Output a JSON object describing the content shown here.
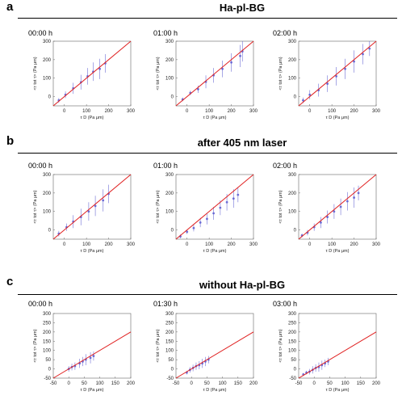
{
  "panels": [
    {
      "letter": "a",
      "title": "Ha-pl-BG",
      "times": [
        "00:00 h",
        "01:00 h",
        "02:00 h"
      ]
    },
    {
      "letter": "b",
      "title": "after 405 nm laser",
      "times": [
        "00:00 h",
        "01:00 h",
        "02:00 h"
      ]
    },
    {
      "letter": "c",
      "title": "without Ha-pl-BG",
      "times": [
        "00:00 h",
        "01:30 h",
        "03:00 h"
      ]
    }
  ],
  "axis_text": {
    "xlabel": "τ D (Pa μm)",
    "ylabel": "<τ tot τ> (Pa μm)"
  },
  "colors": {
    "identity_line": "#e02020",
    "data": "#5a5ad0"
  },
  "chart_data": [
    {
      "type": "scatter",
      "panel": "a",
      "subplot": 1,
      "title": "00:00 h",
      "xlim": [
        -50,
        300
      ],
      "ylim": [
        -50,
        300
      ],
      "xticks": [
        "0",
        "100",
        "200",
        "300"
      ],
      "yticks": [
        "0",
        "100",
        "200",
        "300"
      ],
      "reference_line": "y = x",
      "x": [
        -25,
        5,
        40,
        75,
        105,
        130,
        160,
        185
      ],
      "y": [
        -20,
        10,
        45,
        78,
        110,
        135,
        150,
        180
      ],
      "yerr": [
        12,
        18,
        30,
        40,
        45,
        50,
        55,
        50
      ]
    },
    {
      "type": "scatter",
      "panel": "a",
      "subplot": 2,
      "title": "01:00 h",
      "xlim": [
        -50,
        300
      ],
      "ylim": [
        -50,
        300
      ],
      "xticks": [
        "0",
        "100",
        "200",
        "300"
      ],
      "yticks": [
        "0",
        "100",
        "200",
        "300"
      ],
      "reference_line": "y = x",
      "x": [
        -20,
        15,
        50,
        85,
        120,
        160,
        200,
        240,
        250
      ],
      "y": [
        -15,
        20,
        40,
        80,
        115,
        150,
        185,
        220,
        245
      ],
      "yerr": [
        10,
        12,
        20,
        35,
        40,
        45,
        50,
        60,
        55
      ]
    },
    {
      "type": "scatter",
      "panel": "a",
      "subplot": 3,
      "title": "02:00 h",
      "xlim": [
        -50,
        300
      ],
      "ylim": [
        -50,
        300
      ],
      "xticks": [
        "0",
        "100",
        "200",
        "300"
      ],
      "yticks": [
        "0",
        "100",
        "200",
        "300"
      ],
      "reference_line": "y = x",
      "x": [
        -30,
        0,
        40,
        80,
        120,
        160,
        200,
        240,
        270
      ],
      "y": [
        -20,
        10,
        35,
        70,
        110,
        150,
        190,
        230,
        260
      ],
      "yerr": [
        15,
        25,
        35,
        45,
        50,
        55,
        60,
        55,
        40
      ]
    },
    {
      "type": "scatter",
      "panel": "b",
      "subplot": 1,
      "title": "00:00 h",
      "xlim": [
        -50,
        300
      ],
      "ylim": [
        -50,
        300
      ],
      "xticks": [
        "0",
        "100",
        "200",
        "300"
      ],
      "yticks": [
        "0",
        "100",
        "200",
        "300"
      ],
      "reference_line": "y = x",
      "x": [
        -25,
        10,
        40,
        75,
        110,
        140,
        175,
        200
      ],
      "y": [
        -20,
        15,
        45,
        70,
        100,
        130,
        160,
        195
      ],
      "yerr": [
        15,
        20,
        35,
        45,
        50,
        55,
        60,
        50
      ]
    },
    {
      "type": "scatter",
      "panel": "b",
      "subplot": 2,
      "title": "01:00 h",
      "xlim": [
        -50,
        300
      ],
      "ylim": [
        -50,
        300
      ],
      "xticks": [
        "0",
        "100",
        "200",
        "300"
      ],
      "yticks": [
        "0",
        "100",
        "200",
        "300"
      ],
      "reference_line": "y = x",
      "x": [
        -30,
        0,
        30,
        60,
        90,
        120,
        150,
        180,
        210,
        230
      ],
      "y": [
        -35,
        -10,
        10,
        40,
        60,
        90,
        120,
        150,
        170,
        190
      ],
      "yerr": [
        10,
        12,
        18,
        25,
        30,
        35,
        40,
        45,
        50,
        40
      ]
    },
    {
      "type": "scatter",
      "panel": "b",
      "subplot": 3,
      "title": "02:00 h",
      "xlim": [
        -50,
        300
      ],
      "ylim": [
        -50,
        300
      ],
      "xticks": [
        "0",
        "100",
        "200",
        "300"
      ],
      "yticks": [
        "0",
        "100",
        "200",
        "300"
      ],
      "reference_line": "y = x",
      "x": [
        -35,
        -10,
        20,
        50,
        80,
        110,
        140,
        170,
        200,
        220
      ],
      "y": [
        -30,
        -15,
        15,
        40,
        70,
        100,
        125,
        155,
        175,
        200
      ],
      "yerr": [
        10,
        15,
        20,
        30,
        35,
        40,
        45,
        50,
        55,
        40
      ]
    },
    {
      "type": "scatter",
      "panel": "c",
      "subplot": 1,
      "title": "00:00 h",
      "xlim": [
        -50,
        200
      ],
      "ylim": [
        -50,
        300
      ],
      "xticks": [
        "-50",
        "0",
        "50",
        "100",
        "150",
        "200"
      ],
      "yticks": [
        "-50",
        "0",
        "50",
        "100",
        "150",
        "200",
        "250",
        "300"
      ],
      "reference_line": "y = x",
      "x": [
        0,
        10,
        20,
        35,
        45,
        55,
        70,
        80
      ],
      "y": [
        0,
        10,
        15,
        30,
        40,
        50,
        60,
        70
      ],
      "yerr": [
        15,
        18,
        20,
        25,
        25,
        30,
        30,
        25
      ]
    },
    {
      "type": "scatter",
      "panel": "c",
      "subplot": 2,
      "title": "01:30 h",
      "xlim": [
        -50,
        200
      ],
      "ylim": [
        -50,
        300
      ],
      "xticks": [
        "-50",
        "0",
        "50",
        "100",
        "150",
        "200"
      ],
      "yticks": [
        "-50",
        "0",
        "50",
        "100",
        "150",
        "200",
        "250",
        "300"
      ],
      "reference_line": "y = x",
      "x": [
        -15,
        -5,
        5,
        15,
        25,
        35,
        45,
        55
      ],
      "y": [
        -20,
        -5,
        5,
        15,
        20,
        30,
        40,
        50
      ],
      "yerr": [
        10,
        15,
        18,
        20,
        22,
        25,
        25,
        20
      ]
    },
    {
      "type": "scatter",
      "panel": "c",
      "subplot": 3,
      "title": "03:00 h",
      "xlim": [
        -50,
        200
      ],
      "ylim": [
        -50,
        300
      ],
      "xticks": [
        "-50",
        "0",
        "50",
        "100",
        "150",
        "200"
      ],
      "yticks": [
        "-50",
        "0",
        "50",
        "100",
        "150",
        "200",
        "250",
        "300"
      ],
      "reference_line": "y = x",
      "x": [
        -35,
        -25,
        -15,
        -5,
        5,
        15,
        25,
        35,
        45
      ],
      "y": [
        -30,
        -20,
        -15,
        -5,
        5,
        10,
        20,
        30,
        40
      ],
      "yerr": [
        8,
        10,
        15,
        20,
        20,
        25,
        25,
        20,
        20
      ]
    }
  ]
}
